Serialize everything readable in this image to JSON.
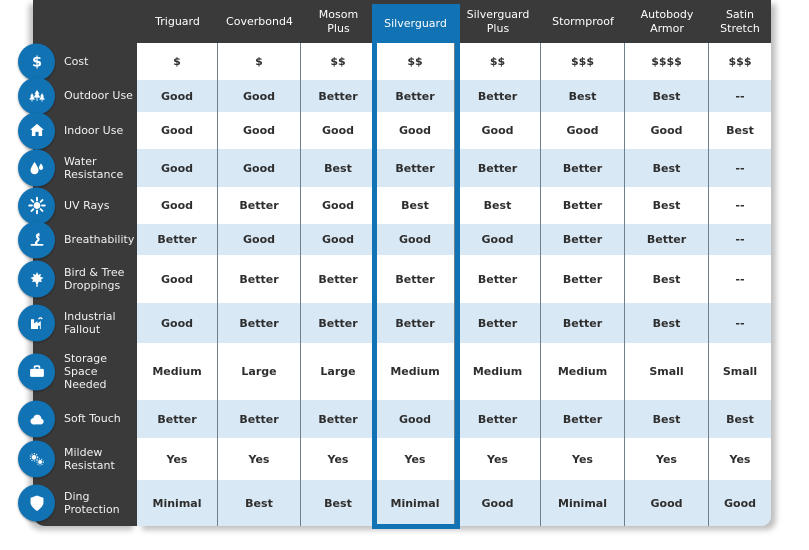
{
  "colors": {
    "accent_blue": "#1172b4",
    "panel_dark": "#3a3a3a",
    "row_stripe_blue": "#d8e8f4",
    "column_divider": "#6f808d",
    "cell_text": "#2e2e2e",
    "header_text": "#ffffff"
  },
  "chart_data": {
    "type": "table",
    "highlighted_column": "Silverguard",
    "columns": [
      "Triguard",
      "Coverbond4",
      "Mosom Plus",
      "Silverguard",
      "Silverguard Plus",
      "Stormproof",
      "Autobody Armor",
      "Satin Stretch"
    ],
    "rows": [
      {
        "label": "Cost",
        "icon": "dollar-icon",
        "values": [
          "$",
          "$",
          "$$",
          "$$",
          "$$",
          "$$$",
          "$$$$",
          "$$$"
        ]
      },
      {
        "label": "Outdoor Use",
        "icon": "trees-icon",
        "values": [
          "Good",
          "Good",
          "Better",
          "Better",
          "Better",
          "Best",
          "Best",
          "--"
        ]
      },
      {
        "label": "Indoor Use",
        "icon": "house-icon",
        "values": [
          "Good",
          "Good",
          "Good",
          "Good",
          "Good",
          "Good",
          "Good",
          "Best"
        ]
      },
      {
        "label": "Water Resistance",
        "icon": "water-drops-icon",
        "values": [
          "Good",
          "Good",
          "Best",
          "Better",
          "Better",
          "Better",
          "Best",
          "--"
        ]
      },
      {
        "label": "UV Rays",
        "icon": "sun-icon",
        "values": [
          "Good",
          "Better",
          "Good",
          "Best",
          "Best",
          "Better",
          "Best",
          "--"
        ]
      },
      {
        "label": "Breathability",
        "icon": "airflow-icon",
        "values": [
          "Better",
          "Good",
          "Good",
          "Good",
          "Good",
          "Better",
          "Better",
          "--"
        ]
      },
      {
        "label": "Bird & Tree Droppings",
        "icon": "maple-leaf-icon",
        "values": [
          "Good",
          "Better",
          "Better",
          "Better",
          "Better",
          "Better",
          "Best",
          "--"
        ]
      },
      {
        "label": "Industrial Fallout",
        "icon": "factory-icon",
        "values": [
          "Good",
          "Better",
          "Better",
          "Better",
          "Better",
          "Better",
          "Best",
          "--"
        ]
      },
      {
        "label": "Storage Space Needed",
        "icon": "briefcase-icon",
        "values": [
          "Medium",
          "Large",
          "Large",
          "Medium",
          "Medium",
          "Medium",
          "Small",
          "Small"
        ]
      },
      {
        "label": "Soft Touch",
        "icon": "cloud-icon",
        "values": [
          "Better",
          "Better",
          "Better",
          "Good",
          "Better",
          "Better",
          "Best",
          "Best"
        ]
      },
      {
        "label": "Mildew Resistant",
        "icon": "spores-icon",
        "values": [
          "Yes",
          "Yes",
          "Yes",
          "Yes",
          "Yes",
          "Yes",
          "Yes",
          "Yes"
        ]
      },
      {
        "label": "Ding Protection",
        "icon": "shield-icon",
        "values": [
          "Minimal",
          "Best",
          "Best",
          "Minimal",
          "Good",
          "Minimal",
          "Good",
          "Good"
        ]
      }
    ]
  }
}
